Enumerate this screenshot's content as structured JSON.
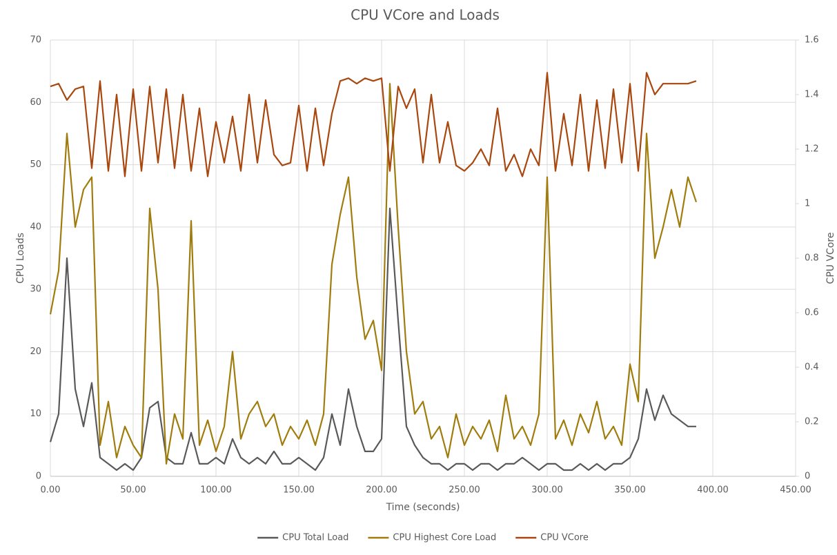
{
  "chart_data": {
    "type": "line",
    "title": "CPU VCore and Loads",
    "x_label": "Time (seconds)",
    "y_label": "CPU Loads",
    "y2_label": "CPU VCore",
    "x": [
      0,
      5,
      10,
      15,
      20,
      25,
      30,
      35,
      40,
      45,
      50,
      55,
      60,
      65,
      70,
      75,
      80,
      85,
      90,
      95,
      100,
      105,
      110,
      115,
      120,
      125,
      130,
      135,
      140,
      145,
      150,
      155,
      160,
      165,
      170,
      175,
      180,
      185,
      190,
      195,
      200,
      205,
      210,
      215,
      220,
      225,
      230,
      235,
      240,
      245,
      250,
      255,
      260,
      265,
      270,
      275,
      280,
      285,
      290,
      295,
      300,
      305,
      310,
      315,
      320,
      325,
      330,
      335,
      340,
      345,
      350,
      355,
      360,
      365,
      370,
      375,
      380,
      385,
      390
    ],
    "series": [
      {
        "name": "CPU Total Load",
        "color": "#595959",
        "values": [
          5.5,
          10,
          35,
          14,
          8,
          15,
          3,
          2,
          1,
          2,
          1,
          3,
          11,
          12,
          3,
          2,
          2,
          7,
          2,
          2,
          3,
          2,
          6,
          3,
          2,
          3,
          2,
          4,
          2,
          2,
          3,
          2,
          1,
          3,
          10,
          5,
          14,
          8,
          4,
          4,
          6,
          43,
          25,
          8,
          5,
          3,
          2,
          2,
          1,
          2,
          2,
          1,
          2,
          2,
          1,
          2,
          2,
          3,
          2,
          1,
          2,
          2,
          1,
          1,
          2,
          1,
          2,
          1,
          2,
          2,
          3,
          6,
          14,
          9,
          13,
          10,
          9,
          8,
          8
        ]
      },
      {
        "name": "CPU Highest Core Load",
        "color": "#a07c0c",
        "values": [
          26,
          33,
          55,
          40,
          46,
          48,
          5,
          12,
          3,
          8,
          5,
          3,
          43,
          30,
          2,
          10,
          6,
          41,
          5,
          9,
          4,
          8,
          20,
          6,
          10,
          12,
          8,
          10,
          5,
          8,
          6,
          9,
          5,
          10,
          34,
          42,
          48,
          32,
          22,
          25,
          17,
          63,
          40,
          20,
          10,
          12,
          6,
          8,
          3,
          10,
          5,
          8,
          6,
          9,
          4,
          13,
          6,
          8,
          5,
          10,
          48,
          6,
          9,
          5,
          10,
          7,
          12,
          6,
          8,
          5,
          18,
          12,
          55,
          35,
          40,
          46,
          40,
          48,
          44
        ]
      },
      {
        "name": "CPU VCore",
        "color": "#a8470e",
        "axis": "y2",
        "values": [
          1.43,
          1.44,
          1.38,
          1.42,
          1.43,
          1.13,
          1.45,
          1.12,
          1.4,
          1.1,
          1.42,
          1.12,
          1.43,
          1.15,
          1.42,
          1.13,
          1.4,
          1.12,
          1.35,
          1.1,
          1.3,
          1.15,
          1.32,
          1.12,
          1.4,
          1.15,
          1.38,
          1.18,
          1.14,
          1.15,
          1.36,
          1.12,
          1.35,
          1.14,
          1.33,
          1.45,
          1.46,
          1.44,
          1.46,
          1.45,
          1.46,
          1.12,
          1.43,
          1.35,
          1.42,
          1.15,
          1.4,
          1.15,
          1.3,
          1.14,
          1.12,
          1.15,
          1.2,
          1.14,
          1.35,
          1.12,
          1.18,
          1.1,
          1.2,
          1.14,
          1.48,
          1.12,
          1.33,
          1.14,
          1.4,
          1.12,
          1.38,
          1.13,
          1.42,
          1.15,
          1.44,
          1.12,
          1.48,
          1.4,
          1.44,
          1.44,
          1.44,
          1.44,
          1.45
        ]
      }
    ],
    "xlim": [
      0,
      450
    ],
    "xticks": [
      {
        "value": 0,
        "label": "0.00"
      },
      {
        "value": 50,
        "label": "50.00"
      },
      {
        "value": 100,
        "label": "100.00"
      },
      {
        "value": 150,
        "label": "150.00"
      },
      {
        "value": 200,
        "label": "200.00"
      },
      {
        "value": 250,
        "label": "250.00"
      },
      {
        "value": 300,
        "label": "300.00"
      },
      {
        "value": 350,
        "label": "350.00"
      },
      {
        "value": 400,
        "label": "400.00"
      },
      {
        "value": 450,
        "label": "450.00"
      }
    ],
    "ylim": [
      0,
      70
    ],
    "yticks": [
      0,
      10,
      20,
      30,
      40,
      50,
      60,
      70
    ],
    "y2lim": [
      0,
      1.6
    ],
    "y2ticks": [
      0,
      0.2,
      0.4,
      0.6,
      0.8,
      1,
      1.2,
      1.4,
      1.6
    ],
    "grid": true,
    "legend": "bottom"
  }
}
